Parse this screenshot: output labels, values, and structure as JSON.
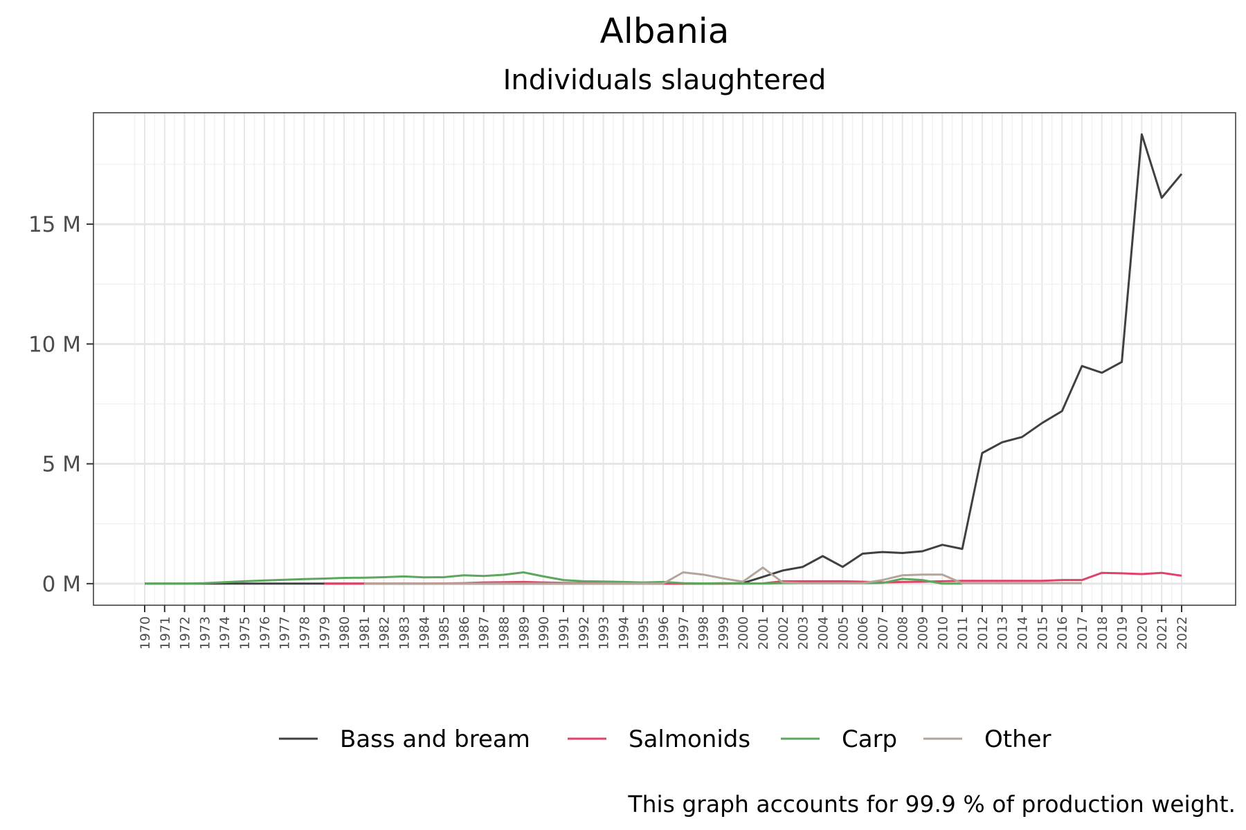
{
  "chart_data": {
    "type": "line",
    "title": "Albania",
    "subtitle": "Individuals slaughtered",
    "caption": "This graph accounts for 99.9 % of production weight.",
    "xlabel": "",
    "ylabel": "",
    "ylim": [
      -0.9,
      19.65
    ],
    "y_ticks": [
      0,
      5,
      10,
      15
    ],
    "y_tick_labels": [
      "0 M",
      "5 M",
      "10 M",
      "15 M"
    ],
    "y_unit": "millions of individuals",
    "x_ticks": [
      1970,
      1971,
      1972,
      1973,
      1974,
      1975,
      1976,
      1977,
      1978,
      1979,
      1980,
      1981,
      1982,
      1983,
      1984,
      1985,
      1986,
      1987,
      1988,
      1989,
      1990,
      1991,
      1992,
      1993,
      1994,
      1995,
      1996,
      1997,
      1998,
      1999,
      2000,
      2001,
      2002,
      2003,
      2004,
      2005,
      2006,
      2007,
      2008,
      2009,
      2010,
      2011,
      2012,
      2013,
      2014,
      2015,
      2016,
      2017,
      2018,
      2019,
      2020,
      2021,
      2022
    ],
    "grid": true,
    "legend_position": "bottom",
    "series": [
      {
        "name": "Bass and bream",
        "color": "#404040",
        "x": [
          1970,
          1971,
          1972,
          1973,
          1974,
          1975,
          1976,
          1977,
          1978,
          1979,
          1980,
          1981,
          1982,
          1983,
          1984,
          1985,
          1986,
          1987,
          1988,
          1989,
          1990,
          1991,
          1992,
          1993,
          1994,
          1995,
          1996,
          1997,
          1998,
          1999,
          2000,
          2001,
          2002,
          2003,
          2004,
          2005,
          2006,
          2007,
          2008,
          2009,
          2010,
          2011,
          2012,
          2013,
          2014,
          2015,
          2016,
          2017,
          2018,
          2019,
          2020,
          2021,
          2022
        ],
        "values": [
          0,
          0,
          0,
          0,
          0,
          0,
          0,
          0,
          0,
          0,
          0,
          0,
          0,
          0,
          0,
          0,
          0,
          0,
          0,
          0,
          0,
          0,
          0,
          0,
          0,
          0,
          0,
          0,
          0,
          0,
          0.02,
          0.28,
          0.55,
          0.7,
          1.15,
          0.7,
          1.25,
          1.32,
          1.28,
          1.35,
          1.62,
          1.45,
          5.45,
          5.9,
          6.12,
          6.7,
          7.2,
          9.08,
          8.8,
          9.25,
          18.75,
          16.1,
          17.1
        ]
      },
      {
        "name": "Salmonids",
        "color": "#e0426a",
        "x": [
          1979,
          1980,
          1981,
          1982,
          1983,
          1984,
          1985,
          1986,
          1987,
          1988,
          1989,
          1990,
          1991,
          1992,
          1993,
          1994,
          1995,
          1996,
          1997,
          1998,
          1999,
          2000,
          2001,
          2002,
          2003,
          2004,
          2005,
          2006,
          2007,
          2008,
          2009,
          2010,
          2011,
          2012,
          2013,
          2014,
          2015,
          2016,
          2017,
          2018,
          2019,
          2020,
          2021,
          2022
        ],
        "values": [
          0,
          0,
          0,
          0,
          0,
          0,
          0.01,
          0.02,
          0.05,
          0.06,
          0.07,
          0.05,
          0.03,
          0.02,
          0.01,
          0.01,
          0.01,
          0,
          0,
          0,
          0,
          0,
          0.01,
          0.1,
          0.1,
          0.1,
          0.1,
          0.08,
          0.05,
          0.07,
          0.08,
          0.1,
          0.12,
          0.12,
          0.12,
          0.12,
          0.12,
          0.15,
          0.15,
          0.45,
          0.43,
          0.4,
          0.45,
          0.33
        ]
      },
      {
        "name": "Carp",
        "color": "#5da65d",
        "x": [
          1970,
          1971,
          1972,
          1973,
          1974,
          1975,
          1976,
          1977,
          1978,
          1979,
          1980,
          1981,
          1982,
          1983,
          1984,
          1985,
          1986,
          1987,
          1988,
          1989,
          1990,
          1991,
          1992,
          1993,
          1994,
          1995,
          1996,
          1997,
          1998,
          1999,
          2000,
          2001,
          2002,
          2003,
          2004,
          2005,
          2006,
          2007,
          2008,
          2009,
          2010,
          2011
        ],
        "values": [
          0,
          0,
          0,
          0.02,
          0.06,
          0.1,
          0.13,
          0.16,
          0.19,
          0.21,
          0.24,
          0.25,
          0.27,
          0.3,
          0.26,
          0.27,
          0.35,
          0.32,
          0.37,
          0.47,
          0.3,
          0.15,
          0.1,
          0.09,
          0.07,
          0.05,
          0.07,
          0.02,
          0.01,
          0.02,
          0.01,
          0,
          0.02,
          0.02,
          0.02,
          0.02,
          0.02,
          0.03,
          0.2,
          0.15,
          0,
          0
        ]
      },
      {
        "name": "Other",
        "color": "#b3a59a",
        "x": [
          1981,
          1982,
          1983,
          1984,
          1985,
          1986,
          1987,
          1988,
          1989,
          1990,
          1991,
          1992,
          1993,
          1994,
          1995,
          1996,
          1997,
          1998,
          1999,
          2000,
          2001,
          2002,
          2003,
          2004,
          2005,
          2006,
          2007,
          2008,
          2009,
          2010,
          2011,
          2012,
          2013,
          2014,
          2015,
          2016,
          2017
        ],
        "values": [
          0,
          0,
          0,
          0,
          0,
          0,
          0,
          0,
          0,
          0,
          0,
          0,
          0,
          0,
          0,
          0,
          0.47,
          0.38,
          0.22,
          0.08,
          0.67,
          0.05,
          0.02,
          0.02,
          0.02,
          0.02,
          0.15,
          0.35,
          0.38,
          0.38,
          0.02,
          0.02,
          0.02,
          0.02,
          0.02,
          0.02,
          0.02
        ]
      }
    ]
  }
}
